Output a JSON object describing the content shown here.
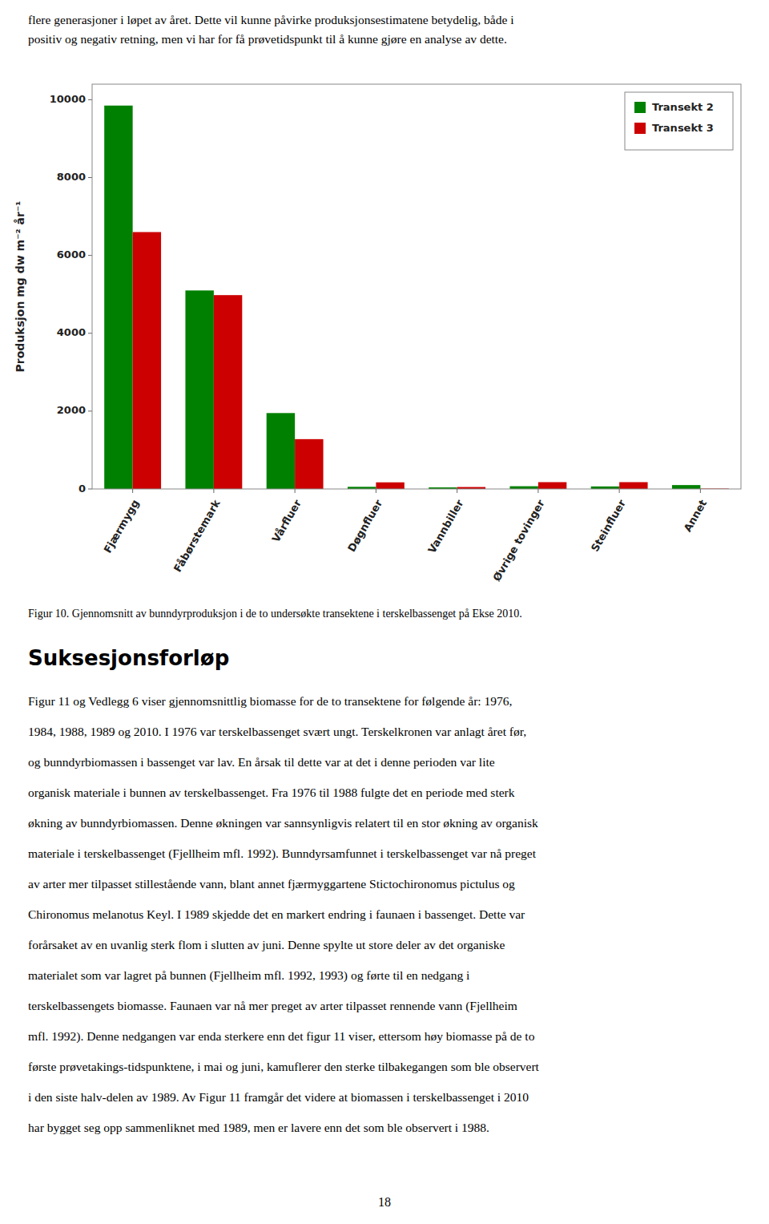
{
  "text_above": [
    "flere generasjoner i løpet av året. Dette vil kunne påvirke produksjonsestimatene betydelig, både i",
    "positiv og negativ retning, men vi har for få prøvetidspunkt til å kunne gjøre en analyse av dette."
  ],
  "chart_data": {
    "type": "bar",
    "categories": [
      "Fjærmygg",
      "Fåbørstemark",
      "Vårfluer",
      "Døgnfluer",
      "Vannbiller",
      "Øvrige tovinger",
      "Steinfluer",
      "Annet"
    ],
    "series": [
      {
        "name": "Transekt 2",
        "color": "#008000",
        "values": [
          9850,
          5100,
          1950,
          55,
          40,
          70,
          65,
          100
        ]
      },
      {
        "name": "Transekt 3",
        "color": "#cc0000",
        "values": [
          6600,
          4980,
          1280,
          170,
          50,
          175,
          175,
          10
        ]
      }
    ],
    "ylabel": "Produksjon mg dw m⁻² år⁻¹",
    "ylim": [
      0,
      10400
    ],
    "yticks": [
      0,
      2000,
      4000,
      6000,
      8000,
      10000
    ],
    "legend": "upper right",
    "grid": false
  },
  "caption": "Figur 10. Gjennomsnitt av bunndyrproduksjon i de to undersøkte transektene i terskelbassenget på Ekse 2010.",
  "section_title": "Suksesjonsforløp",
  "body_text": [
    "Figur 11 og Vedlegg 6 viser gjennomsnittlig biomasse for de to transektene for følgende år: 1976,",
    "1984, 1988, 1989 og 2010. I 1976 var terskelbassenget svært ungt. Terskelkronen var anlagt året før,",
    "og bunndyrbiomassen i bassenget var lav. En årsak til dette var at det i denne perioden var lite",
    "organisk materiale i bunnen av terskelbassenget. Fra 1976 til 1988 fulgte det en periode med sterk",
    "økning av bunndyrbiomassen. Denne økningen var sannsynligvis relatert til en stor økning av organisk",
    "materiale i terskelbassenget (Fjellheim mfl. 1992). Bunndyrsamfunnet i terskelbassenget var nå preget",
    "av arter mer tilpasset stillestående vann, blant annet fjærmyggartene Stictochironomus pictulus og",
    "Chironomus melanotus Keyl. I 1989 skjedde det en markert endring i faunaen i bassenget. Dette var",
    "forårsaket av en uvanlig sterk flom i slutten av juni. Denne spylte ut store deler av det organiske",
    "materialet som var lagret på bunnen (Fjellheim mfl. 1992, 1993) og førte til en nedgang i",
    "terskelbassengets biomasse. Faunaen var nå mer preget av arter tilpasset rennende vann (Fjellheim",
    "mfl. 1992). Denne nedgangen var enda sterkere enn det figur 11 viser, ettersom høy biomasse på de to",
    "første prøvetakings-tidspunktene, i mai og juni, kamuflerer den sterke tilbakegangen som ble observert",
    "i den siste halv-delen av 1989. Av Figur 11 framgår det videre at biomassen i terskelbassenget i 2010",
    "har bygget seg opp sammenliknet med 1989, men er lavere enn det som ble observert i 1988."
  ],
  "page_number": "18"
}
